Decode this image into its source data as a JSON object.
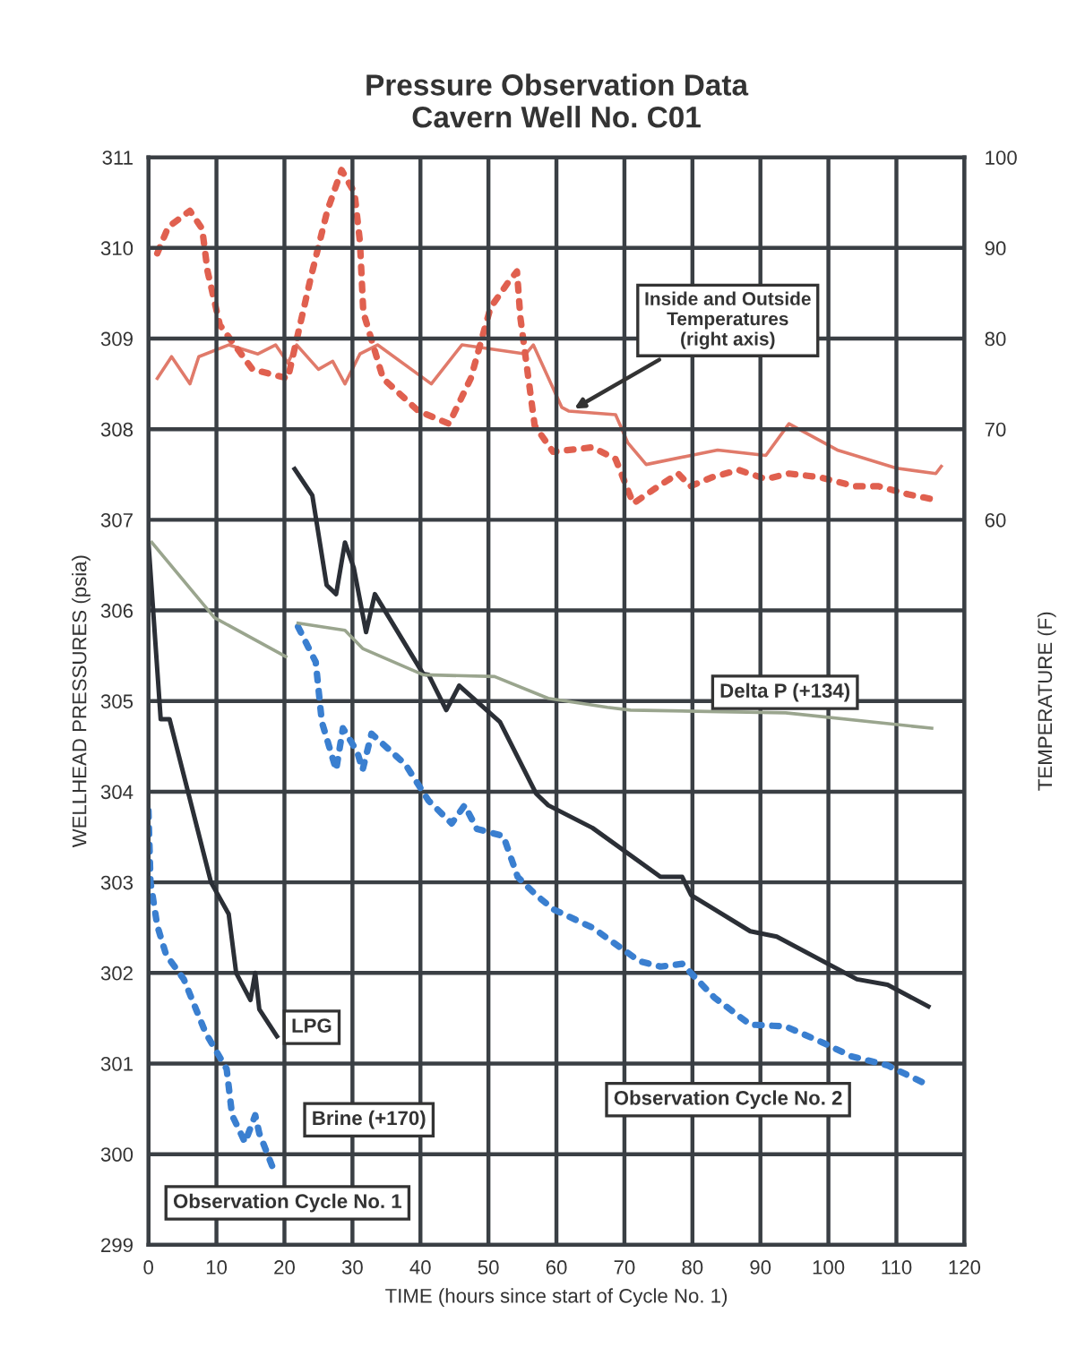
{
  "chart_data": {
    "type": "line",
    "title": "Pressure Observation Data\nCavern Well No. C01",
    "xlabel": "TIME (hours since start of Cycle No. 1)",
    "ylabel": "WELLHEAD PRESSURES (psia)",
    "y2label": "TEMPERATURE (F)",
    "xlim": [
      0,
      120
    ],
    "xticks": [
      0,
      10,
      20,
      30,
      40,
      50,
      60,
      70,
      80,
      90,
      100,
      110,
      120
    ],
    "ylim": [
      299,
      311
    ],
    "yticks": [
      299,
      300,
      301,
      302,
      303,
      304,
      305,
      306,
      307,
      308,
      309,
      310,
      311
    ],
    "y2lim": [
      -20,
      100
    ],
    "y2ticks": [
      60,
      70,
      80,
      90,
      100
    ],
    "grid": true,
    "marker": "none",
    "series": [
      {
        "name": "LPG",
        "color": "#2b2f36",
        "line_style": "solid",
        "x": [
          0,
          1.8,
          3.1,
          9.2,
          11.8,
          12.9,
          15,
          15.7,
          16.3,
          18.9,
          20.2,
          21.5,
          24.1,
          26.2,
          27.6,
          28.9,
          30.2,
          32,
          33.3,
          40.4,
          41.2,
          43.8,
          45.7,
          51.7,
          57,
          58.8,
          65.3,
          75.3,
          78.5,
          79.8,
          88.5,
          92.4,
          104.2,
          108.7,
          114.7
        ],
        "values": [
          306.75,
          304.8,
          304.8,
          303.0,
          302.65,
          302.0,
          301.7,
          302.0,
          301.6,
          301.3,
          null,
          307.56,
          307.27,
          306.28,
          306.18,
          306.75,
          306.47,
          305.76,
          306.18,
          305.3,
          305.29,
          304.9,
          305.17,
          304.77,
          303.98,
          303.85,
          303.6,
          303.06,
          303.06,
          302.86,
          302.46,
          302.4,
          301.93,
          301.87,
          301.63
        ]
      },
      {
        "name": "Brine (+170)",
        "color": "#3a7fd0",
        "line_style": "dotted",
        "x": [
          0,
          0.3,
          1.3,
          2.6,
          5.2,
          8.4,
          11.5,
          12.3,
          14.2,
          15.7,
          16.3,
          18.4,
          20.2,
          22,
          24.6,
          25.5,
          27.6,
          28.6,
          30.7,
          31.5,
          32.8,
          37.8,
          41.2,
          44.6,
          46.5,
          48.3,
          52.2,
          54.3,
          57,
          59.6,
          65.3,
          72.2,
          75.3,
          78.5,
          83.2,
          88.5,
          93.7,
          98.9,
          103.4,
          108.7,
          114.2
        ],
        "values": [
          303.79,
          303.0,
          302.52,
          302.2,
          301.93,
          301.34,
          300.94,
          300.43,
          300.13,
          300.43,
          300.23,
          299.83,
          null,
          305.82,
          305.43,
          304.77,
          304.24,
          304.7,
          304.44,
          304.24,
          304.64,
          304.3,
          303.9,
          303.65,
          303.85,
          303.59,
          303.51,
          303.06,
          302.86,
          302.7,
          302.5,
          302.13,
          302.07,
          302.1,
          301.73,
          301.43,
          301.41,
          301.24,
          301.08,
          300.98,
          300.78
        ]
      },
      {
        "name": "Delta P (+134)",
        "color": "#9aa58e",
        "line_style": "solid",
        "x": [
          0.5,
          9.7,
          20.2,
          21,
          22,
          28.9,
          31.5,
          40.4,
          50.9,
          58.8,
          67.5,
          70.9,
          93.7,
          115.2
        ],
        "values": [
          306.75,
          305.92,
          305.49,
          null,
          305.86,
          305.78,
          305.58,
          305.29,
          305.27,
          305.03,
          304.93,
          304.9,
          304.87,
          304.7
        ]
      },
      {
        "color": "#e07a6a",
        "axis": "y2",
        "line_style": "solid",
        "x": [
          1.3,
          3.4,
          6.1,
          7.4,
          11.8,
          16.1,
          18.7,
          20.5,
          21.8,
          25,
          27.1,
          28.9,
          31.1,
          33.7,
          41.6,
          46.1,
          55.5,
          56.6,
          60.8,
          61.8,
          68.7,
          70.5,
          73.2,
          83.7,
          90.8,
          94.2,
          101.3,
          110,
          115.8,
          116.6
        ],
        "values": [
          75.6,
          78,
          75,
          78,
          79.3,
          78.3,
          79.3,
          77.3,
          79.3,
          76.6,
          77.5,
          75,
          78.3,
          79.3,
          75,
          79.3,
          78.3,
          79.3,
          72.4,
          72,
          71.6,
          68.5,
          66.1,
          67.7,
          67.1,
          70.6,
          67.7,
          65.7,
          65.1,
          65.9
        ]
      },
      {
        "color": "#e0604f",
        "axis": "y2",
        "line_style": "dotted",
        "x": [
          1.3,
          2.9,
          6.1,
          7.9,
          8.7,
          10.5,
          15.3,
          20.5,
          23.9,
          26.3,
          28.4,
          30.3,
          31.1,
          31.6,
          34.5,
          39.7,
          44.2,
          47.4,
          50.3,
          52.9,
          54.2,
          54.7,
          56.8,
          59.5,
          65.3,
          68.7,
          71.3,
          75,
          77.9,
          79.7,
          82.9,
          86.8,
          90.8,
          94.2,
          98.7,
          103.9,
          107.4,
          111.8,
          115.8
        ],
        "values": [
          89.4,
          92.3,
          94.1,
          92.1,
          87.4,
          81.5,
          76.6,
          75.6,
          86.8,
          94.1,
          98.6,
          96.1,
          90.7,
          82.9,
          75.6,
          72,
          70.6,
          75.6,
          83.4,
          86.2,
          87.4,
          82.3,
          70.4,
          67.5,
          68,
          66.7,
          61.8,
          63.7,
          65.1,
          63.7,
          64.7,
          65.5,
          64.5,
          65.1,
          64.7,
          63.7,
          63.7,
          62.8,
          62.2
        ]
      }
    ],
    "annotations": [
      {
        "text": "Inside and Outside\nTemperatures\n(right axis)",
        "x": 62,
        "y": 308.2
      },
      "Observation Cycle No. 1",
      "Observation Cycle No. 2"
    ]
  }
}
